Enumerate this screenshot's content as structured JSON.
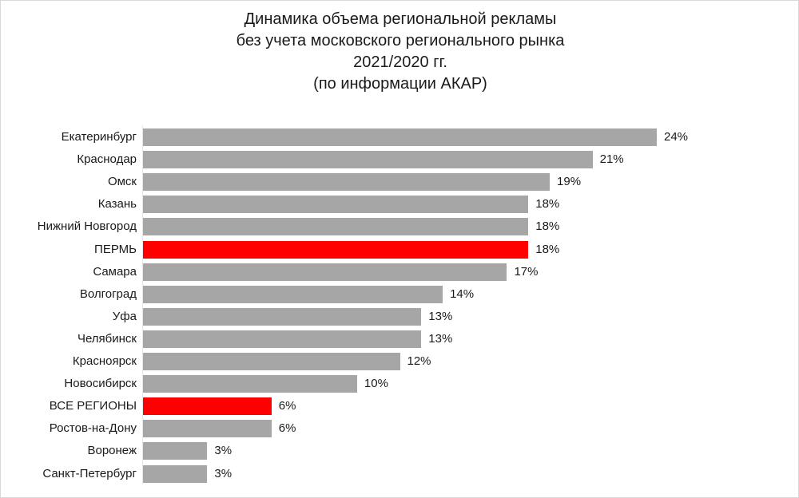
{
  "chart_data": {
    "type": "bar",
    "orientation": "horizontal",
    "title": "Динамика объема региональной рекламы без учета московского регионального рынка 2021/2020 гг. (по информации АКАР)",
    "title_lines": [
      "Динамика объема региональной рекламы",
      "без учета московского регионального рынка",
      "2021/2020 гг.",
      "(по информации АКАР)"
    ],
    "xlabel": "",
    "ylabel": "",
    "categories": [
      "Екатеринбург",
      "Краснодар",
      "Омск",
      "Казань",
      "Нижний Новгород",
      "ПЕРМЬ",
      "Самара",
      "Волгоград",
      "Уфа",
      "Челябинск",
      "Красноярск",
      "Новосибирск",
      "ВСЕ РЕГИОНЫ",
      "Ростов-на-Дону",
      "Воронеж",
      "Санкт-Петербург"
    ],
    "values": [
      24,
      21,
      19,
      18,
      18,
      18,
      17,
      14,
      13,
      13,
      12,
      10,
      6,
      6,
      3,
      3
    ],
    "value_labels": [
      "24%",
      "21%",
      "19%",
      "18%",
      "18%",
      "18%",
      "17%",
      "14%",
      "13%",
      "13%",
      "12%",
      "10%",
      "6%",
      "6%",
      "3%",
      "3%"
    ],
    "unit": "%",
    "highlighted": [
      "ПЕРМЬ",
      "ВСЕ РЕГИОНЫ"
    ],
    "colors": {
      "default": "#a6a6a6",
      "highlight": "#ff0000"
    },
    "grid": false,
    "legend": null,
    "xlim": [
      0,
      24
    ]
  }
}
